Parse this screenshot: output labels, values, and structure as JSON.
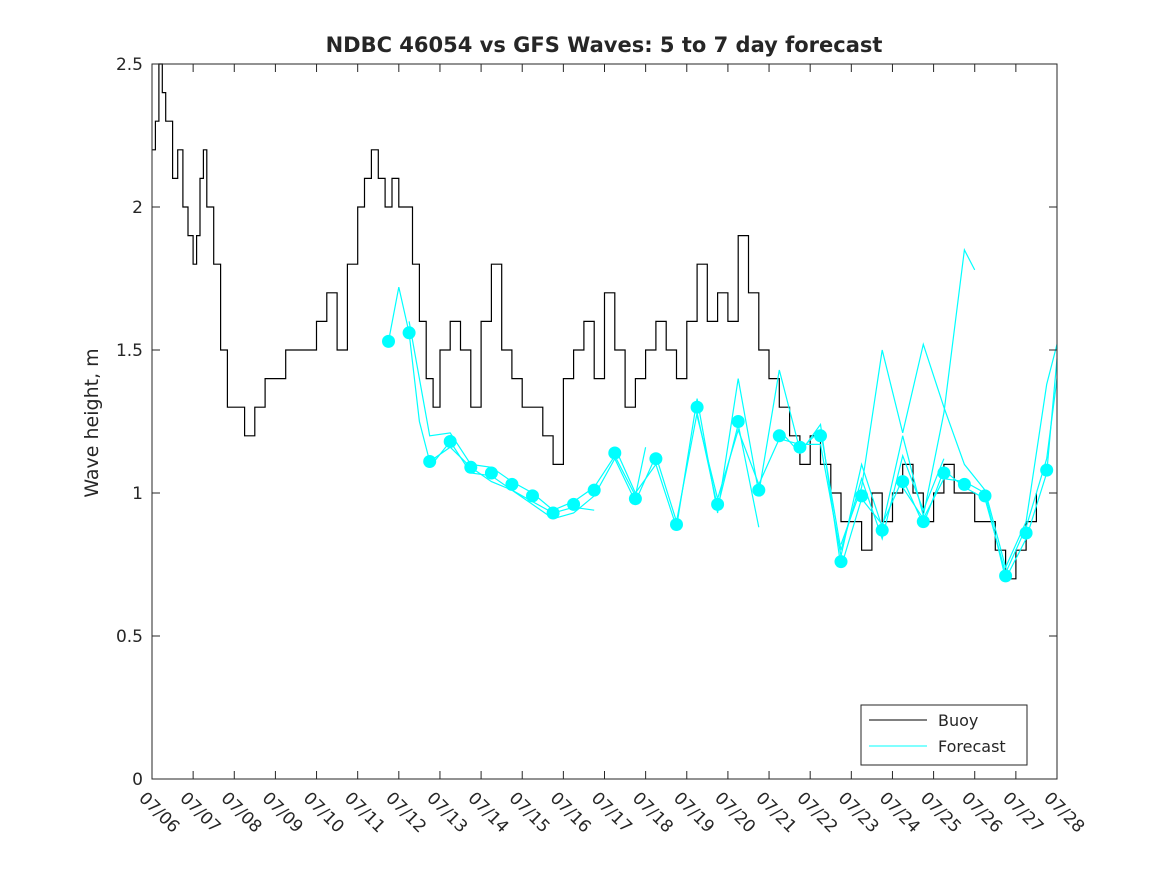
{
  "chart_data": {
    "type": "line",
    "title": "NDBC 46054 vs GFS Waves: 5 to 7 day forecast",
    "xlabel": "",
    "ylabel": "Wave height, m",
    "ylim": [
      0,
      2.5
    ],
    "xlim": [
      "07/06",
      "07/28"
    ],
    "x_tick_labels": [
      "07/06",
      "07/07",
      "07/08",
      "07/09",
      "07/10",
      "07/11",
      "07/12",
      "07/13",
      "07/14",
      "07/15",
      "07/16",
      "07/17",
      "07/18",
      "07/19",
      "07/20",
      "07/21",
      "07/22",
      "07/23",
      "07/24",
      "07/25",
      "07/26",
      "07/27",
      "07/28"
    ],
    "y_tick_labels": [
      "0",
      "0.5",
      "1",
      "1.5",
      "2",
      "2.5"
    ],
    "grid": false,
    "legend": {
      "placement": "bottom-right",
      "entries": [
        "Buoy",
        "Forecast"
      ]
    },
    "colors": {
      "buoy": "#000000",
      "forecast": "#00ffff",
      "axes": "#262626"
    },
    "series": [
      {
        "name": "Buoy",
        "x": [
          "07/06 00:00",
          "07/06 02:00",
          "07/06 04:00",
          "07/06 06:00",
          "07/06 08:00",
          "07/06 12:00",
          "07/06 15:00",
          "07/06 18:00",
          "07/06 21:00",
          "07/07 00:00",
          "07/07 02:00",
          "07/07 04:00",
          "07/07 06:00",
          "07/07 08:00",
          "07/07 12:00",
          "07/07 16:00",
          "07/07 20:00",
          "07/08 00:00",
          "07/08 06:00",
          "07/08 12:00",
          "07/08 18:00",
          "07/09 00:00",
          "07/09 06:00",
          "07/09 12:00",
          "07/09 18:00",
          "07/10 00:00",
          "07/10 06:00",
          "07/10 12:00",
          "07/10 18:00",
          "07/11 00:00",
          "07/11 04:00",
          "07/11 08:00",
          "07/11 12:00",
          "07/11 16:00",
          "07/11 20:00",
          "07/12 00:00",
          "07/12 04:00",
          "07/12 08:00",
          "07/12 12:00",
          "07/12 16:00",
          "07/12 20:00",
          "07/13 00:00",
          "07/13 06:00",
          "07/13 12:00",
          "07/13 18:00",
          "07/14 00:00",
          "07/14 06:00",
          "07/14 12:00",
          "07/14 18:00",
          "07/15 00:00",
          "07/15 06:00",
          "07/15 12:00",
          "07/15 18:00",
          "07/16 00:00",
          "07/16 06:00",
          "07/16 12:00",
          "07/16 18:00",
          "07/17 00:00",
          "07/17 06:00",
          "07/17 12:00",
          "07/17 18:00",
          "07/18 00:00",
          "07/18 06:00",
          "07/18 12:00",
          "07/18 18:00",
          "07/19 00:00",
          "07/19 06:00",
          "07/19 12:00",
          "07/19 18:00",
          "07/20 00:00",
          "07/20 06:00",
          "07/20 12:00",
          "07/20 18:00",
          "07/21 00:00",
          "07/21 06:00",
          "07/21 12:00",
          "07/21 18:00",
          "07/22 00:00",
          "07/22 06:00",
          "07/22 12:00",
          "07/22 18:00",
          "07/23 00:00",
          "07/23 06:00",
          "07/23 12:00",
          "07/23 18:00",
          "07/24 00:00",
          "07/24 06:00",
          "07/24 12:00",
          "07/24 18:00",
          "07/25 00:00",
          "07/25 06:00",
          "07/25 12:00",
          "07/25 18:00",
          "07/26 00:00",
          "07/26 06:00",
          "07/26 12:00",
          "07/26 18:00",
          "07/27 00:00",
          "07/27 06:00",
          "07/27 12:00"
        ],
        "values": [
          2.2,
          2.3,
          2.5,
          2.4,
          2.3,
          2.1,
          2.2,
          2.0,
          1.9,
          1.8,
          1.9,
          2.1,
          2.2,
          2.0,
          1.8,
          1.5,
          1.3,
          1.3,
          1.2,
          1.3,
          1.4,
          1.4,
          1.5,
          1.5,
          1.5,
          1.6,
          1.7,
          1.5,
          1.8,
          2.0,
          2.1,
          2.2,
          2.1,
          2.0,
          2.1,
          2.0,
          2.0,
          1.8,
          1.6,
          1.4,
          1.3,
          1.5,
          1.6,
          1.5,
          1.3,
          1.6,
          1.8,
          1.5,
          1.4,
          1.3,
          1.3,
          1.2,
          1.1,
          1.4,
          1.5,
          1.6,
          1.4,
          1.7,
          1.5,
          1.3,
          1.4,
          1.5,
          1.6,
          1.5,
          1.4,
          1.6,
          1.8,
          1.6,
          1.7,
          1.6,
          1.9,
          1.7,
          1.5,
          1.4,
          1.3,
          1.2,
          1.1,
          1.2,
          1.1,
          1.0,
          0.9,
          0.9,
          0.8,
          1.0,
          0.9,
          1.0,
          1.1,
          1.0,
          0.9,
          1.0,
          1.1,
          1.0,
          1.0,
          0.9,
          0.9,
          0.8,
          0.7,
          0.8,
          0.9,
          1.0
        ]
      },
      {
        "name": "Forecast",
        "points": [
          [
            "07/11 18:00",
            1.53
          ],
          [
            "07/12 06:00",
            1.56
          ],
          [
            "07/12 18:00",
            1.11
          ],
          [
            "07/13 06:00",
            1.18
          ],
          [
            "07/13 18:00",
            1.09
          ],
          [
            "07/14 06:00",
            1.07
          ],
          [
            "07/14 18:00",
            1.03
          ],
          [
            "07/15 06:00",
            0.99
          ],
          [
            "07/15 18:00",
            0.93
          ],
          [
            "07/16 06:00",
            0.96
          ],
          [
            "07/16 18:00",
            1.01
          ],
          [
            "07/17 06:00",
            1.14
          ],
          [
            "07/17 18:00",
            0.98
          ],
          [
            "07/18 06:00",
            1.12
          ],
          [
            "07/18 18:00",
            0.89
          ],
          [
            "07/19 06:00",
            1.3
          ],
          [
            "07/19 18:00",
            0.96
          ],
          [
            "07/20 06:00",
            1.25
          ],
          [
            "07/20 18:00",
            1.01
          ],
          [
            "07/21 06:00",
            1.2
          ],
          [
            "07/21 18:00",
            1.16
          ],
          [
            "07/22 06:00",
            1.2
          ],
          [
            "07/22 18:00",
            0.76
          ],
          [
            "07/23 06:00",
            0.99
          ],
          [
            "07/23 18:00",
            0.87
          ],
          [
            "07/24 06:00",
            1.04
          ],
          [
            "07/24 18:00",
            0.9
          ],
          [
            "07/25 06:00",
            1.07
          ],
          [
            "07/25 18:00",
            1.03
          ],
          [
            "07/26 06:00",
            0.99
          ],
          [
            "07/26 18:00",
            0.71
          ],
          [
            "07/27 06:00",
            0.86
          ],
          [
            "07/27 18:00",
            1.08
          ]
        ],
        "run_lines": [
          [
            [
              "07/11 18:00",
              1.53
            ],
            [
              "07/12 00:00",
              1.72
            ],
            [
              "07/12 06:00",
              1.56
            ],
            [
              "07/12 12:00",
              1.25
            ],
            [
              "07/12 18:00",
              1.11
            ],
            [
              "07/13 06:00",
              1.16
            ],
            [
              "07/13 18:00",
              1.09
            ],
            [
              "07/14 06:00",
              1.04
            ],
            [
              "07/14 18:00",
              1.01
            ],
            [
              "07/15 06:00",
              0.97
            ],
            [
              "07/15 18:00",
              0.93
            ],
            [
              "07/16 06:00",
              0.95
            ],
            [
              "07/16 18:00",
              0.94
            ]
          ],
          [
            [
              "07/12 06:00",
              1.6
            ],
            [
              "07/12 18:00",
              1.2
            ],
            [
              "07/13 06:00",
              1.21
            ],
            [
              "07/13 18:00",
              1.1
            ],
            [
              "07/14 06:00",
              1.09
            ],
            [
              "07/14 18:00",
              1.04
            ],
            [
              "07/15 06:00",
              1.0
            ],
            [
              "07/15 18:00",
              0.94
            ],
            [
              "07/16 06:00",
              0.97
            ],
            [
              "07/16 18:00",
              1.02
            ],
            [
              "07/17 06:00",
              1.13
            ],
            [
              "07/17 18:00",
              0.99
            ],
            [
              "07/18 00:00",
              1.16
            ]
          ],
          [
            [
              "07/12 18:00",
              1.09
            ],
            [
              "07/13 06:00",
              1.18
            ],
            [
              "07/13 18:00",
              1.07
            ],
            [
              "07/14 06:00",
              1.06
            ],
            [
              "07/14 18:00",
              1.01
            ],
            [
              "07/15 06:00",
              0.96
            ],
            [
              "07/15 18:00",
              0.91
            ],
            [
              "07/16 06:00",
              0.93
            ],
            [
              "07/16 18:00",
              0.99
            ],
            [
              "07/17 06:00",
              1.12
            ],
            [
              "07/17 18:00",
              0.97
            ],
            [
              "07/18 06:00",
              1.13
            ],
            [
              "07/18 18:00",
              0.9
            ],
            [
              "07/19 06:00",
              1.28
            ],
            [
              "07/19 18:00",
              0.95
            ],
            [
              "07/20 06:00",
              1.24
            ],
            [
              "07/20 18:00",
              0.88
            ]
          ],
          [
            [
              "07/17 06:00",
              1.16
            ],
            [
              "07/17 18:00",
              1.0
            ],
            [
              "07/18 06:00",
              1.1
            ],
            [
              "07/18 18:00",
              0.88
            ],
            [
              "07/19 06:00",
              1.33
            ],
            [
              "07/19 18:00",
              0.93
            ],
            [
              "07/20 06:00",
              1.4
            ],
            [
              "07/20 18:00",
              1.0
            ],
            [
              "07/21 06:00",
              1.43
            ],
            [
              "07/21 18:00",
              1.15
            ],
            [
              "07/22 06:00",
              1.22
            ],
            [
              "07/22 18:00",
              0.8
            ],
            [
              "07/23 06:00",
              1.05
            ],
            [
              "07/23 18:00",
              0.84
            ],
            [
              "07/24 06:00",
              1.13
            ],
            [
              "07/24 18:00",
              0.94
            ],
            [
              "07/25 06:00",
              1.12
            ]
          ],
          [
            [
              "07/19 06:00",
              1.27
            ],
            [
              "07/19 18:00",
              0.98
            ],
            [
              "07/20 06:00",
              1.22
            ],
            [
              "07/20 18:00",
              1.03
            ],
            [
              "07/21 06:00",
              1.19
            ],
            [
              "07/21 18:00",
              1.17
            ],
            [
              "07/22 06:00",
              1.17
            ],
            [
              "07/22 18:00",
              0.78
            ],
            [
              "07/23 06:00",
              1.1
            ],
            [
              "07/23 18:00",
              0.88
            ],
            [
              "07/24 06:00",
              1.2
            ],
            [
              "07/24 18:00",
              0.92
            ],
            [
              "07/25 06:00",
              1.28
            ],
            [
              "07/25 18:00",
              1.85
            ],
            [
              "07/26 00:00",
              1.78
            ]
          ],
          [
            [
              "07/21 06:00",
              1.22
            ],
            [
              "07/21 18:00",
              1.14
            ],
            [
              "07/22 06:00",
              1.24
            ],
            [
              "07/22 18:00",
              0.74
            ],
            [
              "07/23 06:00",
              0.98
            ],
            [
              "07/23 18:00",
              0.89
            ],
            [
              "07/24 06:00",
              1.05
            ],
            [
              "07/24 18:00",
              0.89
            ],
            [
              "07/25 06:00",
              1.08
            ],
            [
              "07/25 18:00",
              1.02
            ],
            [
              "07/26 06:00",
              0.98
            ],
            [
              "07/26 18:00",
              0.72
            ],
            [
              "07/27 06:00",
              0.88
            ],
            [
              "07/27 18:00",
              1.12
            ],
            [
              "07/28 00:00",
              1.4
            ]
          ],
          [
            [
              "07/22 18:00",
              0.82
            ],
            [
              "07/23 06:00",
              1.02
            ],
            [
              "07/23 18:00",
              1.5
            ],
            [
              "07/24 06:00",
              1.21
            ],
            [
              "07/24 18:00",
              1.52
            ],
            [
              "07/25 06:00",
              1.3
            ],
            [
              "07/25 18:00",
              1.1
            ],
            [
              "07/26 06:00",
              1.01
            ],
            [
              "07/26 18:00",
              0.74
            ],
            [
              "07/27 06:00",
              0.9
            ],
            [
              "07/27 18:00",
              1.38
            ],
            [
              "07/28 00:00",
              1.52
            ]
          ],
          [
            [
              "07/24 06:00",
              1.02
            ],
            [
              "07/24 18:00",
              0.91
            ],
            [
              "07/25 06:00",
              1.05
            ],
            [
              "07/25 18:00",
              1.04
            ],
            [
              "07/26 06:00",
              1.0
            ],
            [
              "07/26 18:00",
              0.7
            ],
            [
              "07/27 06:00",
              0.84
            ],
            [
              "07/27 18:00",
              1.07
            ],
            [
              "07/28 00:00",
              1.47
            ]
          ]
        ]
      }
    ]
  }
}
